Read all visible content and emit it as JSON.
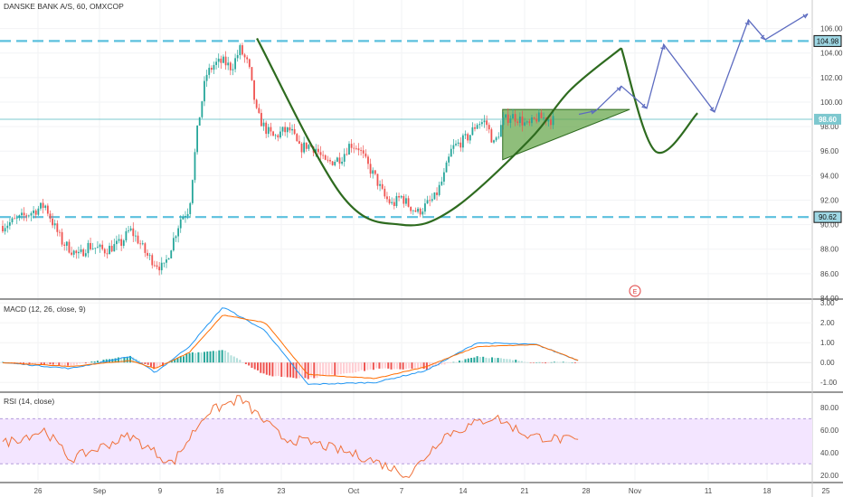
{
  "header": {
    "title": "DANSKE BANK A/S, 60, OMXCOP"
  },
  "colors": {
    "up": "#26a69a",
    "down": "#ef5350",
    "macd_line": "#2196f3",
    "signal_line": "#ff6d00",
    "rsi_line": "#f0713a",
    "rsi_band": "#f3e5ff",
    "level_line": "#5bc0de",
    "price_line": "#7ec8cf",
    "pattern": "#2e6b1f",
    "triangle_fill": "#6aa84f",
    "projection": "#5c6bc0"
  },
  "earnings_marker": "E",
  "price_axis": {
    "ticks": [
      "106.00",
      "104.00",
      "102.00",
      "100.00",
      "98.00",
      "96.00",
      "94.00",
      "92.00",
      "90.00",
      "88.00",
      "86.00",
      "84.00"
    ],
    "badges": [
      {
        "label": "104.98",
        "value": 104.98,
        "style": "level"
      },
      {
        "label": "98.60",
        "value": 98.6,
        "style": "price"
      },
      {
        "label": "90.62",
        "value": 90.62,
        "style": "level"
      }
    ]
  },
  "time_axis": {
    "labels": [
      "26",
      "Sep",
      "9",
      "16",
      "23",
      "Oct",
      "7",
      "14",
      "21",
      "28",
      "Nov",
      "11",
      "18",
      "25"
    ]
  },
  "macd": {
    "title": "MACD (12, 26, close, 9)",
    "ticks": [
      "3.00",
      "2.00",
      "1.00",
      "0.00",
      "-1.00"
    ]
  },
  "rsi": {
    "title": "RSI (14, close)",
    "ticks": [
      "80.00",
      "60.00",
      "40.00",
      "20.00"
    ]
  },
  "chart_data": [
    {
      "type": "candlestick",
      "title": "DANSKE BANK A/S, 60, OMXCOP",
      "x": "time (Aug 22 – Nov 27)",
      "ylim": [
        84.0,
        107.0
      ],
      "series": [
        {
          "name": "price",
          "values": [
            [
              0,
              89.9
            ],
            [
              2,
              90.5
            ],
            [
              5,
              91.6
            ],
            [
              6,
              90.0
            ],
            [
              7,
              88.6
            ],
            [
              8,
              88.0
            ],
            [
              9,
              87.4
            ],
            [
              10,
              88.3
            ],
            [
              11,
              88.1
            ],
            [
              12,
              87.9
            ],
            [
              14,
              88.5
            ],
            [
              15,
              89.6
            ],
            [
              16,
              88.7
            ],
            [
              17,
              87.5
            ],
            [
              18,
              86.9
            ],
            [
              19,
              86.4
            ],
            [
              20,
              88.5
            ],
            [
              21,
              90.5
            ],
            [
              22,
              91.3
            ],
            [
              23,
              97.9
            ],
            [
              24,
              102.2
            ],
            [
              25,
              103.1
            ],
            [
              26,
              103.3
            ],
            [
              27,
              102.8
            ],
            [
              28,
              104.3
            ],
            [
              29,
              103.0
            ],
            [
              30,
              99.0
            ],
            [
              31,
              97.8
            ],
            [
              32,
              97.1
            ],
            [
              33,
              97.6
            ],
            [
              34,
              97.7
            ],
            [
              35,
              96.2
            ],
            [
              36,
              96.5
            ],
            [
              37,
              96.2
            ],
            [
              38,
              95.0
            ],
            [
              39,
              95.2
            ],
            [
              40,
              95.5
            ],
            [
              41,
              96.6
            ],
            [
              42,
              96.3
            ],
            [
              43,
              94.9
            ],
            [
              44,
              93.8
            ],
            [
              45,
              92.3
            ],
            [
              46,
              91.6
            ],
            [
              47,
              92.3
            ],
            [
              48,
              91.5
            ],
            [
              49,
              91.0
            ],
            [
              50,
              91.6
            ],
            [
              51,
              92.2
            ],
            [
              52,
              93.8
            ],
            [
              53,
              96.2
            ],
            [
              54,
              96.7
            ],
            [
              55,
              97.2
            ],
            [
              56,
              98.3
            ],
            [
              57,
              98.4
            ],
            [
              58,
              96.5
            ],
            [
              59,
              98.4
            ],
            [
              60,
              98.9
            ],
            [
              61,
              98.6
            ],
            [
              62,
              98.0
            ],
            [
              63,
              98.7
            ],
            [
              64,
              98.7
            ],
            [
              65,
              98.5
            ]
          ]
        }
      ],
      "annotations": [
        {
          "type": "horizontal_line",
          "value": 104.98,
          "label": "104.98"
        },
        {
          "type": "horizontal_line",
          "value": 90.62,
          "label": "90.62"
        },
        {
          "type": "price_line",
          "value": 98.6,
          "label": "98.60"
        },
        {
          "type": "cup_curve",
          "points": [
            [
              30,
              105.2
            ],
            [
              40,
              92.4
            ],
            [
              47,
              90.0
            ],
            [
              53,
              91.2
            ],
            [
              62,
              96.8
            ],
            [
              67,
              101.0
            ],
            [
              73,
              104.4
            ]
          ]
        },
        {
          "type": "handle_curve",
          "points": [
            [
              73,
              104.4
            ],
            [
              77,
              96.0
            ],
            [
              82,
              99.1
            ]
          ]
        },
        {
          "type": "triangle",
          "points": [
            [
              59,
              99.4
            ],
            [
              74,
              99.4
            ],
            [
              59,
              95.3
            ]
          ]
        },
        {
          "type": "projection_path",
          "points": [
            [
              68,
              99.0
            ],
            [
              70,
              99.3
            ],
            [
              73,
              101.3
            ],
            [
              76,
              99.5
            ],
            [
              78,
              104.7
            ],
            [
              84,
              99.2
            ],
            [
              88,
              106.7
            ],
            [
              90,
              105.1
            ],
            [
              95,
              107.2
            ]
          ]
        }
      ]
    },
    {
      "type": "bar",
      "title": "MACD (12, 26, close, 9)",
      "ylim": [
        -1.4,
        3.1
      ],
      "series": [
        {
          "name": "MACD",
          "values": [
            [
              0,
              0.0
            ],
            [
              8,
              -0.3
            ],
            [
              15,
              0.3
            ],
            [
              18,
              -0.5
            ],
            [
              22,
              0.8
            ],
            [
              26,
              2.8
            ],
            [
              31,
              1.6
            ],
            [
              36,
              -1.1
            ],
            [
              44,
              -1.0
            ],
            [
              50,
              -0.4
            ],
            [
              56,
              1.0
            ],
            [
              63,
              0.9
            ],
            [
              68,
              0.1
            ]
          ]
        },
        {
          "name": "Signal",
          "values": [
            [
              0,
              0.0
            ],
            [
              8,
              -0.2
            ],
            [
              15,
              0.1
            ],
            [
              18,
              -0.3
            ],
            [
              22,
              0.5
            ],
            [
              26,
              2.4
            ],
            [
              31,
              2.0
            ],
            [
              36,
              -0.6
            ],
            [
              44,
              -0.8
            ],
            [
              50,
              -0.2
            ],
            [
              56,
              0.8
            ],
            [
              63,
              0.9
            ],
            [
              68,
              0.1
            ]
          ]
        }
      ]
    },
    {
      "type": "line",
      "title": "RSI (14, close)",
      "ylim": [
        15,
        92
      ],
      "bands": {
        "upper": 70,
        "lower": 30
      },
      "series": [
        {
          "name": "RSI",
          "values": [
            [
              0,
              48
            ],
            [
              5,
              60
            ],
            [
              8,
              34
            ],
            [
              15,
              55
            ],
            [
              20,
              30
            ],
            [
              24,
              75
            ],
            [
              28,
              88
            ],
            [
              33,
              53
            ],
            [
              37,
              48
            ],
            [
              43,
              35
            ],
            [
              48,
              20
            ],
            [
              52,
              55
            ],
            [
              58,
              72
            ],
            [
              62,
              55
            ],
            [
              68,
              50
            ]
          ]
        }
      ]
    }
  ]
}
